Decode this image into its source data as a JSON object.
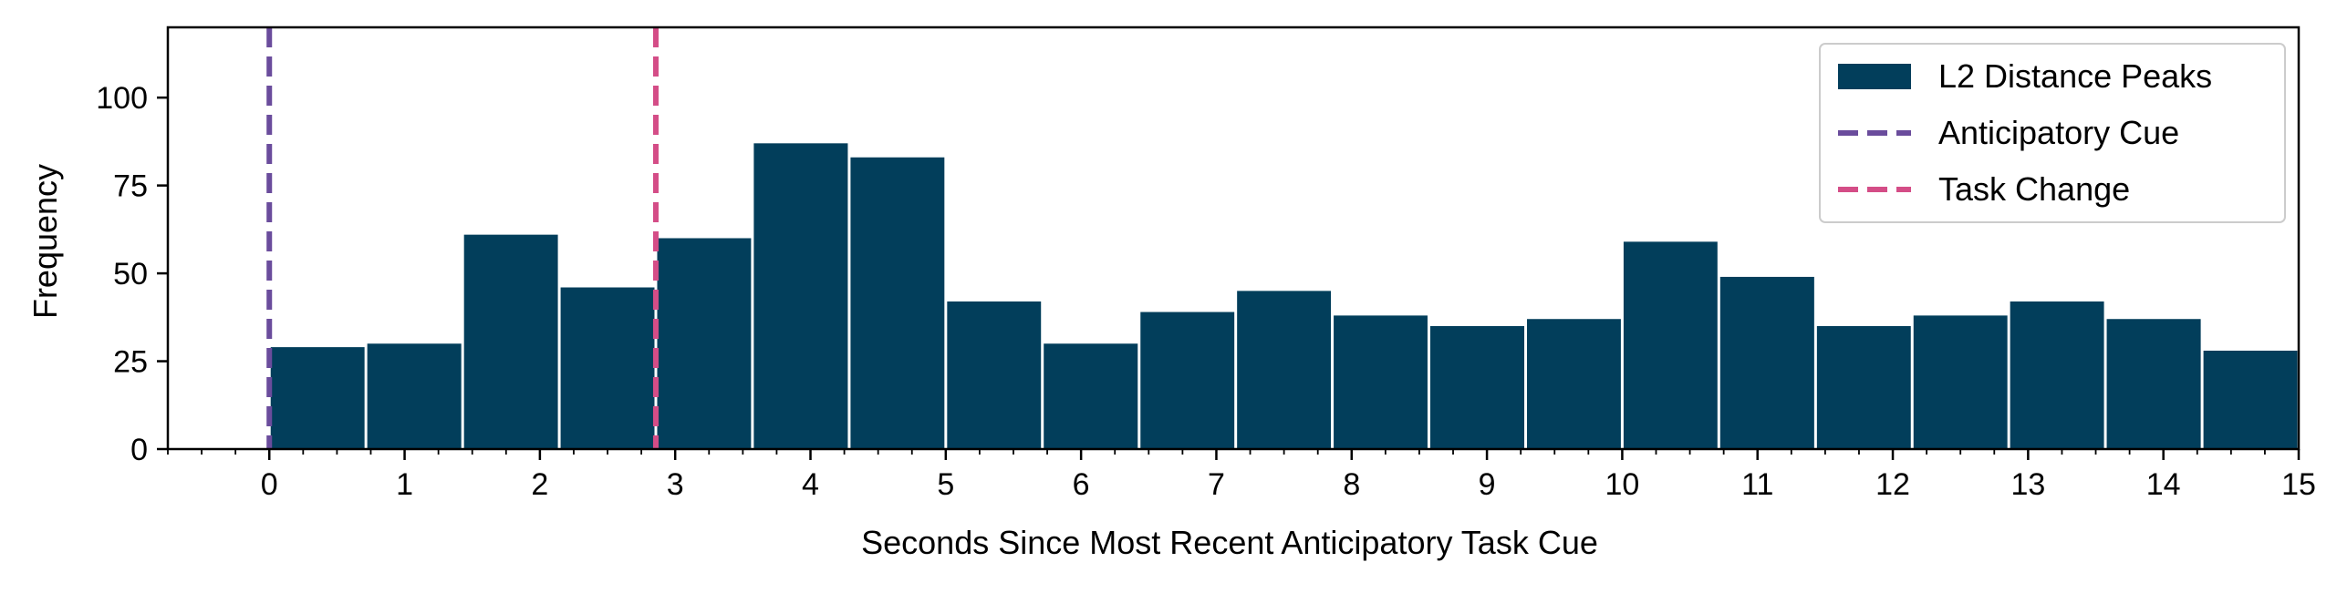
{
  "chart_data": {
    "type": "bar",
    "xlabel": "Seconds Since Most Recent Anticipatory Task Cue",
    "ylabel": "Frequency",
    "xlim": [
      -0.75,
      15
    ],
    "ylim": [
      0,
      120
    ],
    "xticks": [
      0,
      1,
      2,
      3,
      4,
      5,
      6,
      7,
      8,
      9,
      10,
      11,
      12,
      13,
      14,
      15
    ],
    "yticks": [
      0,
      25,
      50,
      75,
      100
    ],
    "bins": {
      "edges": [
        0,
        0.714,
        1.429,
        2.143,
        2.857,
        3.571,
        4.286,
        5.0,
        5.714,
        6.429,
        7.143,
        7.857,
        8.571,
        9.286,
        10.0,
        10.714,
        11.429,
        12.143,
        12.857,
        13.571,
        14.286,
        15.0
      ],
      "values": [
        29,
        30,
        61,
        46,
        60,
        87,
        83,
        42,
        30,
        39,
        45,
        38,
        35,
        37,
        59,
        49,
        35,
        38,
        42,
        37,
        28
      ]
    },
    "series": [
      {
        "name": "L2 Distance Peaks",
        "kind": "bar",
        "color": "#023e5b"
      },
      {
        "name": "Anticipatory Cue",
        "kind": "vline",
        "x": 0,
        "color": "#6a4c9c",
        "style": "dashed"
      },
      {
        "name": "Task Change",
        "kind": "vline",
        "x": 2.857,
        "color": "#d44d87",
        "style": "dashed"
      }
    ],
    "legend": "top-right",
    "grid": false
  }
}
